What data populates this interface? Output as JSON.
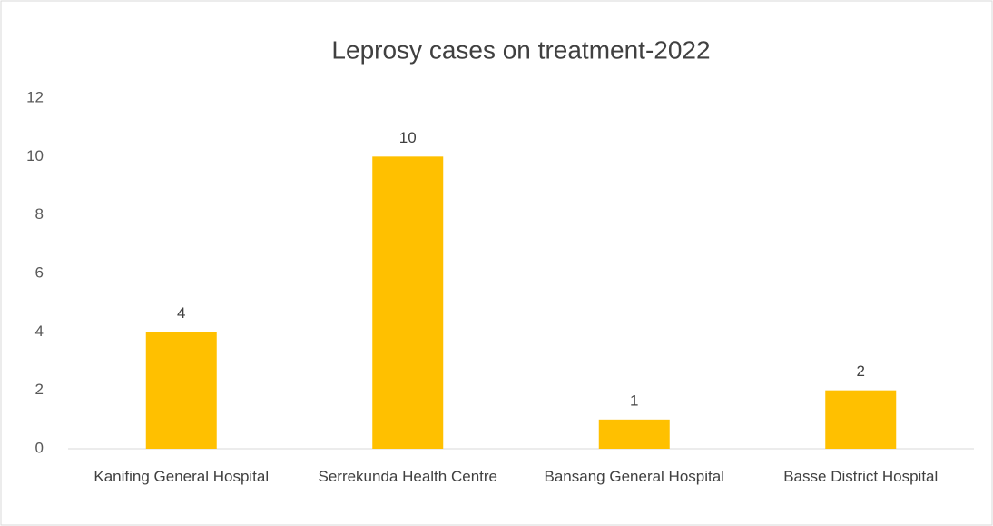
{
  "chart_data": {
    "type": "bar",
    "title": "Leprosy cases on treatment-2022",
    "categories": [
      "Kanifing General Hospital",
      "Serrekunda Health Centre",
      "Bansang General Hospital",
      "Basse District Hospital"
    ],
    "values": [
      4,
      10,
      1,
      2
    ],
    "color": "#ffc000",
    "ylim": [
      0,
      12
    ],
    "yticks": [
      0,
      2,
      4,
      6,
      8,
      10,
      12
    ],
    "grid": false,
    "data_labels": true
  }
}
